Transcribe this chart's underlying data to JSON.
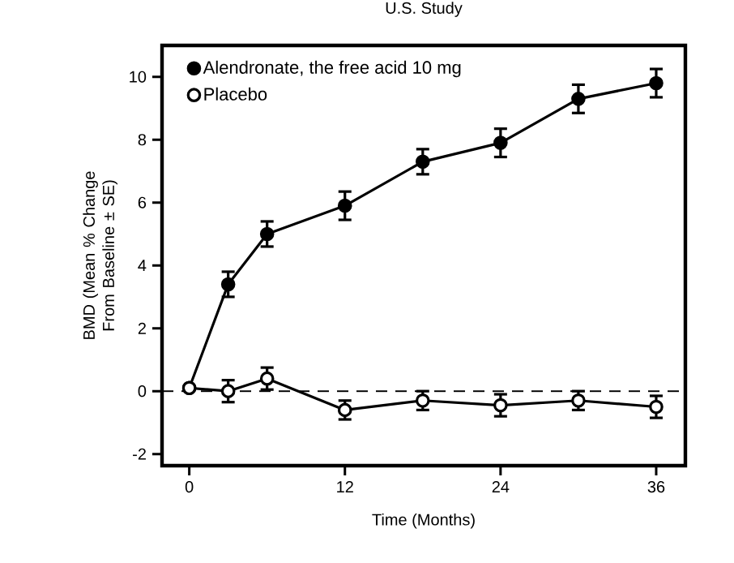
{
  "chart_data": {
    "type": "line",
    "title": "U.S. Study",
    "xlabel": "Time (Months)",
    "ylabel": "BMD (Mean % Change From Baseline ± SE)",
    "x": [
      0,
      3,
      6,
      12,
      18,
      24,
      30,
      36
    ],
    "series": [
      {
        "name": "Alendronate, the free acid 10 mg",
        "color": "#000000",
        "values": [
          0.1,
          3.4,
          5.0,
          5.9,
          7.3,
          7.9,
          9.3,
          9.8
        ],
        "errors": [
          null,
          0.4,
          0.4,
          0.45,
          0.4,
          0.45,
          0.45,
          0.45
        ]
      },
      {
        "name": "Placebo",
        "color": "#000000",
        "values": [
          0.1,
          0.0,
          0.4,
          -0.6,
          -0.3,
          -0.45,
          -0.3,
          -0.5
        ],
        "errors": [
          null,
          0.35,
          0.35,
          0.3,
          0.3,
          0.35,
          0.3,
          0.35
        ]
      }
    ],
    "xlim": [
      -2.1,
      38.25
    ],
    "ylim": [
      -2.37,
      11.0
    ],
    "xticks": [
      0,
      12,
      24,
      36
    ],
    "yticks": [
      -2,
      0,
      2,
      4,
      6,
      8,
      10
    ],
    "ref_lines": [
      {
        "axis": "y",
        "value": 0,
        "line_style": "dashed"
      }
    ],
    "legend": "top left",
    "marker": "circle",
    "line_style": "solid",
    "grid": false
  }
}
